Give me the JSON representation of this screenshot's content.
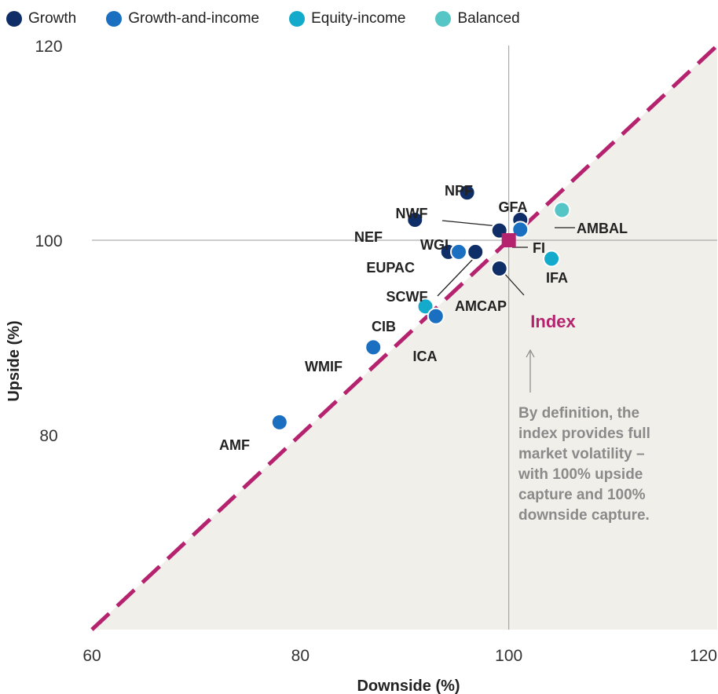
{
  "chart_data": {
    "type": "scatter",
    "xlabel": "Downside (%)",
    "ylabel": "Upside (%)",
    "xlim": [
      60,
      120
    ],
    "ylim": [
      60,
      120
    ],
    "x_ticks": [
      60,
      80,
      100,
      120
    ],
    "y_ticks": [
      80,
      100,
      120
    ],
    "grid": false,
    "legend_position": "top",
    "reference_lines": {
      "x": 100,
      "y": 100
    },
    "diagonal_label": "",
    "shaded_region": "below-diagonal",
    "legend": [
      {
        "name": "Growth",
        "color": "#0f2d66"
      },
      {
        "name": "Growth-and-income",
        "color": "#1a6fc0"
      },
      {
        "name": "Equity-income",
        "color": "#13aacb"
      },
      {
        "name": "Balanced",
        "color": "#55c5c6"
      }
    ],
    "points": [
      {
        "label": "AMF",
        "category": "Growth-and-income",
        "x": 78,
        "y": 81.3
      },
      {
        "label": "WMIF",
        "category": "Growth-and-income",
        "x": 87,
        "y": 89
      },
      {
        "label": "CIB",
        "category": "Equity-income",
        "x": 92,
        "y": 93.2
      },
      {
        "label": "ICA",
        "category": "Growth-and-income",
        "x": 93,
        "y": 92.2
      },
      {
        "label": "EUPAC",
        "category": "Growth",
        "x": 94.2,
        "y": 98.8
      },
      {
        "label": "",
        "category": "Growth-and-income",
        "x": 95.2,
        "y": 98.8
      },
      {
        "label": "SCWF",
        "category": "Growth",
        "x": 96.8,
        "y": 98.8
      },
      {
        "label": "NEF",
        "category": "Growth",
        "x": 91,
        "y": 102.1
      },
      {
        "label": "NPF",
        "category": "Growth",
        "x": 96,
        "y": 104.9
      },
      {
        "label": "NWF",
        "category": "Growth",
        "x": 99.1,
        "y": 101
      },
      {
        "label": "WGI",
        "category": "Growth",
        "x": 99.1,
        "y": 101
      },
      {
        "label": "AMCAP",
        "category": "Growth",
        "x": 99.1,
        "y": 97.1
      },
      {
        "label": "GFA",
        "category": "Growth",
        "x": 101.1,
        "y": 102.1
      },
      {
        "label": "FI",
        "category": "Growth-and-income",
        "x": 101.1,
        "y": 101.1
      },
      {
        "label": "IFA",
        "category": "Equity-income",
        "x": 104.1,
        "y": 98.1
      },
      {
        "label": "AMBAL",
        "category": "Balanced",
        "x": 105.1,
        "y": 103.1
      }
    ],
    "index_point": {
      "label": "Index",
      "x": 100,
      "y": 100,
      "color": "#b5236f"
    },
    "annotation": {
      "lines": [
        "By definition, the",
        "index provides full",
        "market volatility –",
        "with 100% upside",
        "capture and 100%",
        "downside capture."
      ]
    }
  }
}
